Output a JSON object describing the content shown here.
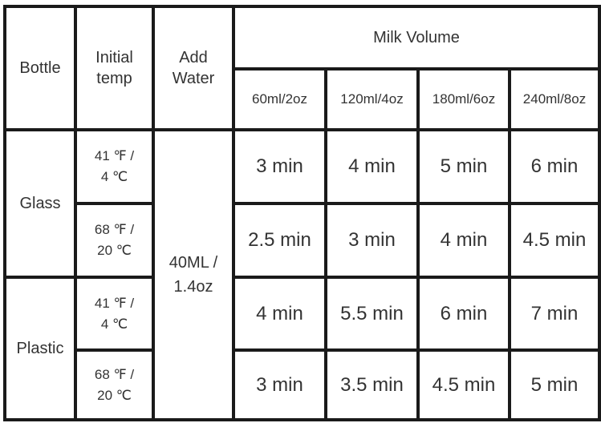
{
  "headers": {
    "bottle": "Bottle",
    "initial_temp_line1": "Initial",
    "initial_temp_line2": "temp",
    "add_water_line1": "Add",
    "add_water_line2": "Water",
    "milk_volume": "Milk Volume",
    "volumes": [
      "60ml/2oz",
      "120ml/4oz",
      "180ml/6oz",
      "240ml/8oz"
    ]
  },
  "add_water": {
    "line1": "40ML /",
    "line2": "1.4oz"
  },
  "groups": [
    {
      "bottle": "Glass",
      "rows": [
        {
          "temp_f": "41 ℉ /",
          "temp_c": "4 ℃",
          "times": [
            "3 min",
            "4 min",
            "5 min",
            "6 min"
          ]
        },
        {
          "temp_f": "68 ℉ /",
          "temp_c": "20 ℃",
          "times": [
            "2.5 min",
            "3 min",
            "4 min",
            "4.5 min"
          ]
        }
      ]
    },
    {
      "bottle": "Plastic",
      "rows": [
        {
          "temp_f": "41 ℉ /",
          "temp_c": "4 ℃",
          "times": [
            "4 min",
            "5.5 min",
            "6 min",
            "7 min"
          ]
        },
        {
          "temp_f": "68 ℉ /",
          "temp_c": "20 ℃",
          "times": [
            "3 min",
            "3.5 min",
            "4.5 min",
            "5 min"
          ]
        }
      ]
    }
  ]
}
